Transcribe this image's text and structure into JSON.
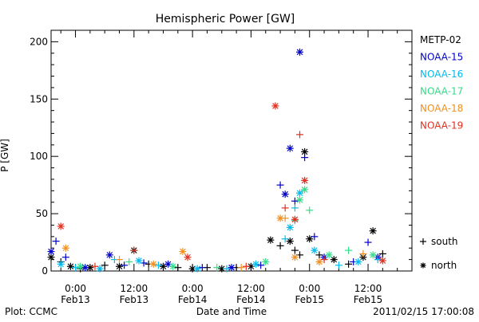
{
  "chart_data": {
    "type": "scatter",
    "title": "Hemispheric Power [GW]",
    "xlabel": "Date and Time",
    "ylabel": "P [GW]",
    "ylim": [
      0,
      210
    ],
    "xlim": [
      "2011-02-12 19:00",
      "2011-02-15 21:00"
    ],
    "y_ticks": [
      0,
      50,
      100,
      150,
      200
    ],
    "x_ticks": [
      {
        "x": "2011-02-13 00:00",
        "label_top": "0:00",
        "label_bottom": "Feb13"
      },
      {
        "x": "2011-02-13 12:00",
        "label_top": "12:00",
        "label_bottom": "Feb13"
      },
      {
        "x": "2011-02-14 00:00",
        "label_top": "0:00",
        "label_bottom": "Feb14"
      },
      {
        "x": "2011-02-14 12:00",
        "label_top": "12:00",
        "label_bottom": "Feb14"
      },
      {
        "x": "2011-02-15 00:00",
        "label_top": "0:00",
        "label_bottom": "Feb15"
      },
      {
        "x": "2011-02-15 12:00",
        "label_top": "12:00",
        "label_bottom": "Feb15"
      }
    ],
    "grid": false,
    "legend_position": "right",
    "marker_legend": [
      {
        "symbol": "+",
        "label": "south"
      },
      {
        "symbol": "*",
        "label": "north"
      }
    ],
    "series": [
      {
        "name": "METP-02",
        "color": "#000000",
        "points": [
          {
            "x": "2011-02-12 19:00",
            "y": 12,
            "m": "*"
          },
          {
            "x": "2011-02-12 21:00",
            "y": 8,
            "m": "+"
          },
          {
            "x": "2011-02-12 23:00",
            "y": 4,
            "m": "*"
          },
          {
            "x": "2011-02-13 01:00",
            "y": 2,
            "m": "+"
          },
          {
            "x": "2011-02-13 03:00",
            "y": 3,
            "m": "*"
          },
          {
            "x": "2011-02-13 06:00",
            "y": 5,
            "m": "+"
          },
          {
            "x": "2011-02-13 09:00",
            "y": 4,
            "m": "*"
          },
          {
            "x": "2011-02-13 12:00",
            "y": 18,
            "m": "*"
          },
          {
            "x": "2011-02-13 15:00",
            "y": 6,
            "m": "+"
          },
          {
            "x": "2011-02-13 18:00",
            "y": 4,
            "m": "*"
          },
          {
            "x": "2011-02-13 21:00",
            "y": 3,
            "m": "+"
          },
          {
            "x": "2011-02-14 00:00",
            "y": 2,
            "m": "*"
          },
          {
            "x": "2011-02-14 03:00",
            "y": 3,
            "m": "+"
          },
          {
            "x": "2011-02-14 06:00",
            "y": 2,
            "m": "*"
          },
          {
            "x": "2011-02-14 09:00",
            "y": 3,
            "m": "+"
          },
          {
            "x": "2011-02-14 12:00",
            "y": 4,
            "m": "*"
          },
          {
            "x": "2011-02-14 16:00",
            "y": 27,
            "m": "*"
          },
          {
            "x": "2011-02-14 18:00",
            "y": 22,
            "m": "+"
          },
          {
            "x": "2011-02-14 20:00",
            "y": 26,
            "m": "*"
          },
          {
            "x": "2011-02-14 21:00",
            "y": 18,
            "m": "+"
          },
          {
            "x": "2011-02-14 22:00",
            "y": 14,
            "m": "+"
          },
          {
            "x": "2011-02-14 23:00",
            "y": 104,
            "m": "*"
          },
          {
            "x": "2011-02-15 00:00",
            "y": 28,
            "m": "*"
          },
          {
            "x": "2011-02-15 02:00",
            "y": 14,
            "m": "+"
          },
          {
            "x": "2011-02-15 05:00",
            "y": 10,
            "m": "*"
          },
          {
            "x": "2011-02-15 08:00",
            "y": 6,
            "m": "+"
          },
          {
            "x": "2011-02-15 11:00",
            "y": 12,
            "m": "*"
          },
          {
            "x": "2011-02-15 13:00",
            "y": 35,
            "m": "*"
          },
          {
            "x": "2011-02-15 15:00",
            "y": 15,
            "m": "+"
          }
        ]
      },
      {
        "name": "NOAA-15",
        "color": "#0000cc",
        "points": [
          {
            "x": "2011-02-12 19:00",
            "y": 17,
            "m": "*"
          },
          {
            "x": "2011-02-12 20:00",
            "y": 26,
            "m": "+"
          },
          {
            "x": "2011-02-12 22:00",
            "y": 12,
            "m": "+"
          },
          {
            "x": "2011-02-13 02:00",
            "y": 3,
            "m": "*"
          },
          {
            "x": "2011-02-13 07:00",
            "y": 14,
            "m": "*"
          },
          {
            "x": "2011-02-13 10:00",
            "y": 5,
            "m": "+"
          },
          {
            "x": "2011-02-13 14:00",
            "y": 7,
            "m": "+"
          },
          {
            "x": "2011-02-13 19:00",
            "y": 6,
            "m": "*"
          },
          {
            "x": "2011-02-14 02:00",
            "y": 3,
            "m": "+"
          },
          {
            "x": "2011-02-14 08:00",
            "y": 3,
            "m": "*"
          },
          {
            "x": "2011-02-14 14:00",
            "y": 5,
            "m": "+"
          },
          {
            "x": "2011-02-14 18:00",
            "y": 75,
            "m": "+"
          },
          {
            "x": "2011-02-14 19:00",
            "y": 67,
            "m": "*"
          },
          {
            "x": "2011-02-14 20:00",
            "y": 107,
            "m": "*"
          },
          {
            "x": "2011-02-14 21:00",
            "y": 61,
            "m": "+"
          },
          {
            "x": "2011-02-14 22:00",
            "y": 191,
            "m": "*"
          },
          {
            "x": "2011-02-14 23:00",
            "y": 99,
            "m": "+"
          },
          {
            "x": "2011-02-15 01:00",
            "y": 30,
            "m": "+"
          },
          {
            "x": "2011-02-15 03:00",
            "y": 12,
            "m": "*"
          },
          {
            "x": "2011-02-15 09:00",
            "y": 8,
            "m": "+"
          },
          {
            "x": "2011-02-15 12:00",
            "y": 25,
            "m": "+"
          },
          {
            "x": "2011-02-15 14:00",
            "y": 12,
            "m": "*"
          }
        ]
      },
      {
        "name": "NOAA-16",
        "color": "#00bbee",
        "points": [
          {
            "x": "2011-02-12 21:00",
            "y": 6,
            "m": "*"
          },
          {
            "x": "2011-02-13 00:00",
            "y": 3,
            "m": "+"
          },
          {
            "x": "2011-02-13 05:00",
            "y": 2,
            "m": "*"
          },
          {
            "x": "2011-02-13 08:00",
            "y": 10,
            "m": "+"
          },
          {
            "x": "2011-02-13 13:00",
            "y": 9,
            "m": "*"
          },
          {
            "x": "2011-02-13 17:00",
            "y": 5,
            "m": "+"
          },
          {
            "x": "2011-02-14 01:00",
            "y": 2,
            "m": "*"
          },
          {
            "x": "2011-02-14 07:00",
            "y": 2,
            "m": "+"
          },
          {
            "x": "2011-02-14 13:00",
            "y": 6,
            "m": "*"
          },
          {
            "x": "2011-02-14 19:00",
            "y": 28,
            "m": "+"
          },
          {
            "x": "2011-02-14 20:00",
            "y": 38,
            "m": "*"
          },
          {
            "x": "2011-02-14 21:00",
            "y": 55,
            "m": "+"
          },
          {
            "x": "2011-02-14 22:00",
            "y": 68,
            "m": "*"
          },
          {
            "x": "2011-02-15 01:00",
            "y": 18,
            "m": "*"
          },
          {
            "x": "2011-02-15 06:00",
            "y": 5,
            "m": "+"
          },
          {
            "x": "2011-02-15 10:00",
            "y": 8,
            "m": "*"
          },
          {
            "x": "2011-02-15 14:00",
            "y": 10,
            "m": "+"
          }
        ]
      },
      {
        "name": "NOAA-17",
        "color": "#33dd88",
        "points": [
          {
            "x": "2011-02-13 01:00",
            "y": 4,
            "m": "*"
          },
          {
            "x": "2011-02-13 11:00",
            "y": 8,
            "m": "+"
          },
          {
            "x": "2011-02-13 20:00",
            "y": 4,
            "m": "*"
          },
          {
            "x": "2011-02-14 05:00",
            "y": 3,
            "m": "+"
          },
          {
            "x": "2011-02-14 15:00",
            "y": 8,
            "m": "*"
          },
          {
            "x": "2011-02-14 21:00",
            "y": 44,
            "m": "+"
          },
          {
            "x": "2011-02-14 22:00",
            "y": 62,
            "m": "*"
          },
          {
            "x": "2011-02-14 23:00",
            "y": 71,
            "m": "*"
          },
          {
            "x": "2011-02-15 00:00",
            "y": 53,
            "m": "+"
          },
          {
            "x": "2011-02-15 04:00",
            "y": 14,
            "m": "*"
          },
          {
            "x": "2011-02-15 08:00",
            "y": 18,
            "m": "+"
          },
          {
            "x": "2011-02-15 13:00",
            "y": 14,
            "m": "*"
          }
        ]
      },
      {
        "name": "NOAA-18",
        "color": "#f09020",
        "points": [
          {
            "x": "2011-02-12 22:00",
            "y": 20,
            "m": "*"
          },
          {
            "x": "2011-02-13 09:00",
            "y": 10,
            "m": "+"
          },
          {
            "x": "2011-02-13 16:00",
            "y": 6,
            "m": "*"
          },
          {
            "x": "2011-02-13 22:00",
            "y": 17,
            "m": "*"
          },
          {
            "x": "2011-02-14 10:00",
            "y": 3,
            "m": "+"
          },
          {
            "x": "2011-02-14 18:00",
            "y": 46,
            "m": "*"
          },
          {
            "x": "2011-02-14 19:00",
            "y": 46,
            "m": "+"
          },
          {
            "x": "2011-02-14 21:00",
            "y": 12,
            "m": "*"
          },
          {
            "x": "2011-02-15 02:00",
            "y": 8,
            "m": "*"
          },
          {
            "x": "2011-02-15 11:00",
            "y": 15,
            "m": "+"
          }
        ]
      },
      {
        "name": "NOAA-19",
        "color": "#e03020",
        "points": [
          {
            "x": "2011-02-12 21:00",
            "y": 39,
            "m": "*"
          },
          {
            "x": "2011-02-13 04:00",
            "y": 4,
            "m": "+"
          },
          {
            "x": "2011-02-13 12:00",
            "y": 18,
            "m": "+"
          },
          {
            "x": "2011-02-13 23:00",
            "y": 12,
            "m": "*"
          },
          {
            "x": "2011-02-14 11:00",
            "y": 4,
            "m": "+"
          },
          {
            "x": "2011-02-14 17:00",
            "y": 144,
            "m": "*"
          },
          {
            "x": "2011-02-14 19:00",
            "y": 55,
            "m": "+"
          },
          {
            "x": "2011-02-14 21:00",
            "y": 45,
            "m": "*"
          },
          {
            "x": "2011-02-14 22:00",
            "y": 119,
            "m": "+"
          },
          {
            "x": "2011-02-14 23:00",
            "y": 79,
            "m": "*"
          },
          {
            "x": "2011-02-15 03:00",
            "y": 10,
            "m": "+"
          },
          {
            "x": "2011-02-15 15:00",
            "y": 9,
            "m": "*"
          }
        ]
      }
    ]
  },
  "footer": {
    "credit": "Plot: CCMC",
    "timestamp": "2011/02/15 17:00:08"
  }
}
